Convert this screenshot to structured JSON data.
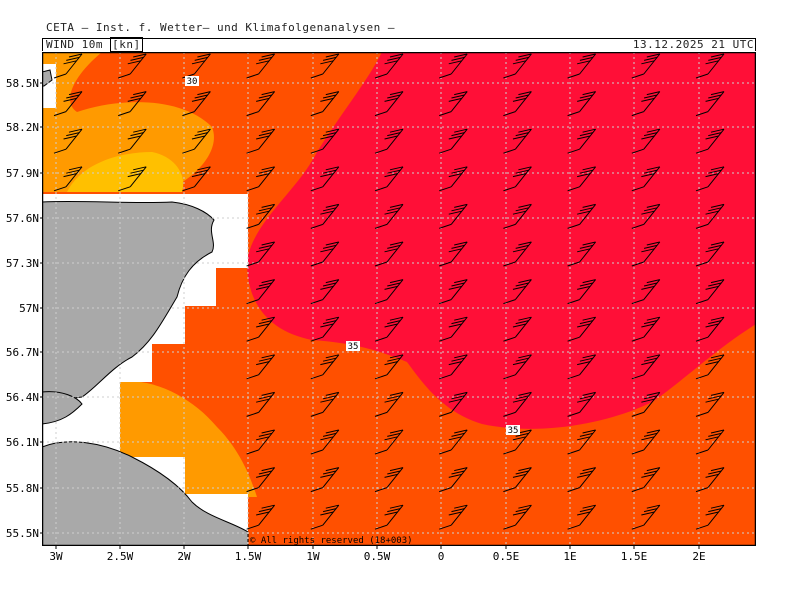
{
  "header": {
    "title": "CETA — Inst. f. Wetter— und Klimafolgenanalysen —",
    "parameter": "WIND 10m",
    "unit": "[kn]",
    "valid_time": "13.12.2025 21 UTC"
  },
  "map": {
    "region": "North Sea / east coast of Scotland",
    "lat_labels": [
      "58.5N",
      "58.2N",
      "57.9N",
      "57.6N",
      "57.3N",
      "57N",
      "56.7N",
      "56.4N",
      "56.1N",
      "55.8N",
      "55.5N"
    ],
    "lon_labels": [
      "3W",
      "2.5W",
      "2W",
      "1.5W",
      "1W",
      "0.5W",
      "0",
      "0.5E",
      "1E",
      "1.5E",
      "2E"
    ],
    "contour_labels": [
      "30",
      "35",
      "35"
    ],
    "copyright": "© All rights reserved (18+003)",
    "colors": {
      "land": "#a9a9a9",
      "ws_25_30": "#ff9a00",
      "ws_30_35": "#ff5000",
      "ws_35_40": "#ff0f37",
      "ws_20_25": "#ffc000",
      "barb": "#000000",
      "grid": "#cccccc"
    }
  }
}
